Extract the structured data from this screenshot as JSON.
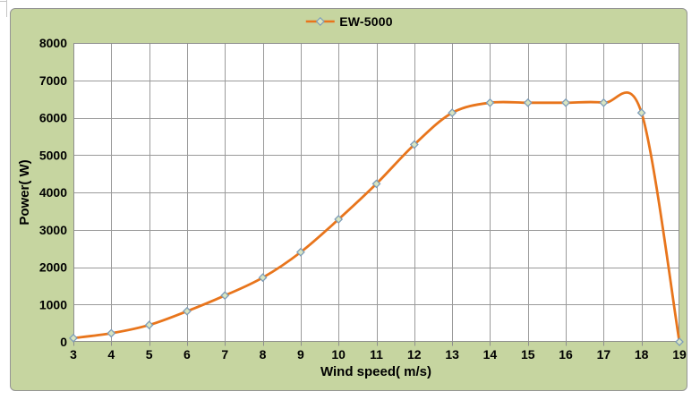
{
  "chart_data": {
    "type": "line",
    "series": [
      {
        "name": "EW-5000",
        "x": [
          3,
          4,
          5,
          6,
          7,
          8,
          9,
          10,
          11,
          12,
          13,
          14,
          15,
          16,
          17,
          18,
          19
        ],
        "values": [
          100,
          230,
          450,
          820,
          1240,
          1720,
          2400,
          3280,
          4230,
          5280,
          6130,
          6400,
          6400,
          6400,
          6400,
          6130,
          0
        ],
        "color": "#e8751c",
        "marker": "diamond",
        "smooth": true
      }
    ],
    "xlabel": "Wind speed( m/s)",
    "ylabel": "Power( W)",
    "xlim": [
      3,
      19
    ],
    "ylim": [
      0,
      8000
    ],
    "x_ticks": [
      3,
      4,
      5,
      6,
      7,
      8,
      9,
      10,
      11,
      12,
      13,
      14,
      15,
      16,
      17,
      18,
      19
    ],
    "y_ticks": [
      0,
      1000,
      2000,
      3000,
      4000,
      5000,
      6000,
      7000,
      8000
    ],
    "grid": true,
    "legend_position": "top-center"
  },
  "colors": {
    "chart_background": "#c6d5a0",
    "plot_background": "#ffffff",
    "gridline": "#9a9a9a",
    "plot_border": "#8e8e8e",
    "series_line": "#e8751c",
    "marker_fill": "#d9e5c0",
    "marker_stroke": "#7e9db9",
    "text": "#000000"
  }
}
